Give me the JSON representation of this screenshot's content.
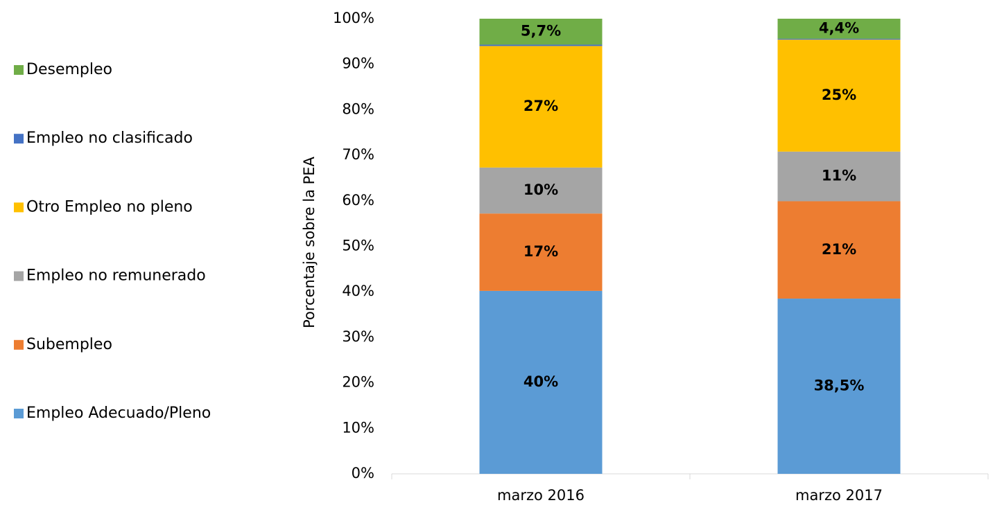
{
  "chart_data": {
    "type": "stacked_bar",
    "y_label": "Porcentaje sobre la PEA",
    "categories": [
      "marzo 2016",
      "marzo 2017"
    ],
    "series": [
      {
        "name": "Empleo Adecuado/Pleno",
        "color": "#5b9bd5",
        "values": [
          40.2,
          38.5
        ],
        "value_labels": [
          "40%",
          "38,5%"
        ]
      },
      {
        "name": "Subempleo",
        "color": "#ed7d31",
        "values": [
          17.0,
          21.4
        ],
        "value_labels": [
          "17%",
          "21%"
        ]
      },
      {
        "name": "Empleo no remunerado",
        "color": "#a5a5a5",
        "values": [
          10.1,
          10.9
        ],
        "value_labels": [
          "10%",
          "11%"
        ]
      },
      {
        "name": "Otro Empleo no pleno",
        "color": "#ffc000",
        "values": [
          26.7,
          24.6
        ],
        "value_labels": [
          "27%",
          "25%"
        ]
      },
      {
        "name": "Empleo no clasificado",
        "color": "#4472c4",
        "values": [
          0.3,
          0.2
        ],
        "value_labels": [
          null,
          null
        ]
      },
      {
        "name": "Desempleo",
        "color": "#70ad47",
        "values": [
          5.7,
          4.4
        ],
        "value_labels": [
          "5,7%",
          "4,4%"
        ]
      }
    ],
    "ylim": [
      0,
      100
    ],
    "yticks": [
      {
        "value": 0,
        "label": "0%"
      },
      {
        "value": 10,
        "label": "10%"
      },
      {
        "value": 20,
        "label": "20%"
      },
      {
        "value": 30,
        "label": "30%"
      },
      {
        "value": 40,
        "label": "40%"
      },
      {
        "value": 50,
        "label": "50%"
      },
      {
        "value": 60,
        "label": "60%"
      },
      {
        "value": 70,
        "label": "70%"
      },
      {
        "value": 80,
        "label": "80%"
      },
      {
        "value": 90,
        "label": "90%"
      },
      {
        "value": 100,
        "label": "100%"
      }
    ],
    "legend": "left",
    "grid": false
  }
}
